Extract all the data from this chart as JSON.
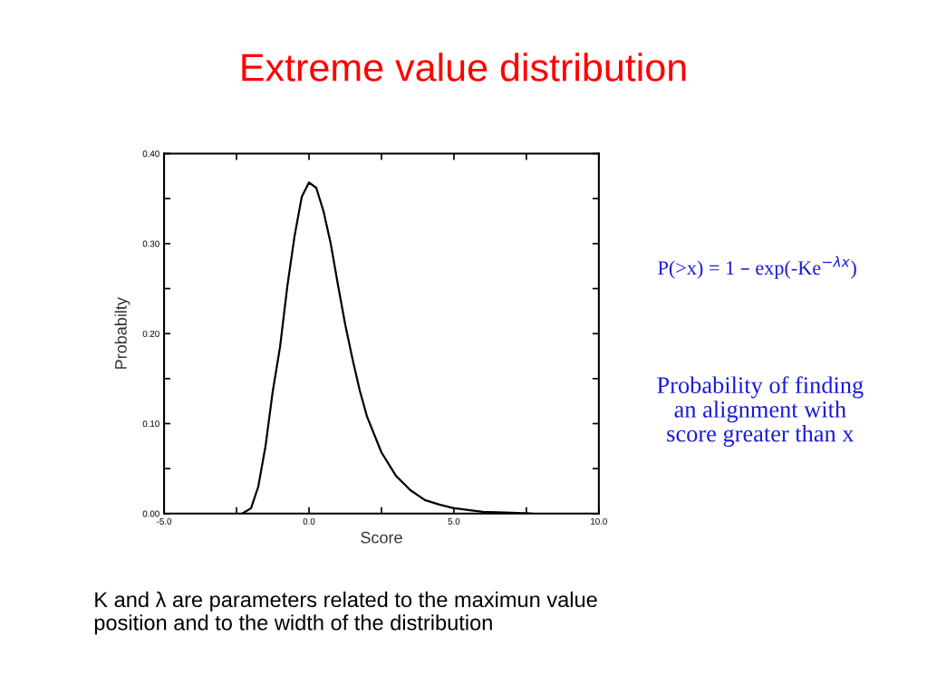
{
  "chart_data": {
    "type": "line",
    "title": "Extreme value distribution",
    "xlabel": "Score",
    "ylabel": "Probabilty",
    "x": [
      -2.3,
      -2.0,
      -1.75,
      -1.5,
      -1.25,
      -1.0,
      -0.75,
      -0.5,
      -0.25,
      0.0,
      0.25,
      0.5,
      0.75,
      1.0,
      1.25,
      1.5,
      1.75,
      2.0,
      2.5,
      3.0,
      3.5,
      4.0,
      4.5,
      5.0,
      5.5,
      6.0,
      7.0,
      7.7
    ],
    "series": [
      {
        "color": "#000000",
        "values": [
          0.0,
          0.006,
          0.03,
          0.075,
          0.136,
          0.185,
          0.252,
          0.308,
          0.352,
          0.368,
          0.362,
          0.336,
          0.3,
          0.254,
          0.21,
          0.172,
          0.137,
          0.108,
          0.068,
          0.042,
          0.026,
          0.015,
          0.01,
          0.006,
          0.004,
          0.002,
          0.001,
          0.0
        ]
      }
    ],
    "xlim": [
      -5,
      10
    ],
    "ylim": [
      0,
      0.4
    ],
    "xticks": [
      {
        "value": -5,
        "label": "-5.0"
      },
      {
        "value": -2.5,
        "label": null
      },
      {
        "value": 0,
        "label": "0.0"
      },
      {
        "value": 2.5,
        "label": null
      },
      {
        "value": 5,
        "label": "5.0"
      },
      {
        "value": 7.5,
        "label": null
      },
      {
        "value": 10,
        "label": "10.0"
      }
    ],
    "yticks": [
      {
        "value": 0,
        "label": "0.00"
      },
      {
        "value": 0.05,
        "label": null
      },
      {
        "value": 0.1,
        "label": "0.10"
      },
      {
        "value": 0.15,
        "label": null
      },
      {
        "value": 0.2,
        "label": "0.20"
      },
      {
        "value": 0.25,
        "label": null
      },
      {
        "value": 0.3,
        "label": "0.30"
      },
      {
        "value": 0.35,
        "label": null
      },
      {
        "value": 0.4,
        "label": "0.40"
      }
    ],
    "grid": false,
    "legend": false,
    "marker": "none",
    "line_style": "solid",
    "annotations": [
      "P(>x) = 1 – exp(-Ke$^{−λx}$)",
      "Probability of finding\nan alignment with\nscore greater than x",
      "K and λ are parameters related to the maximun value\nposition and to the width of the distribution"
    ]
  }
}
